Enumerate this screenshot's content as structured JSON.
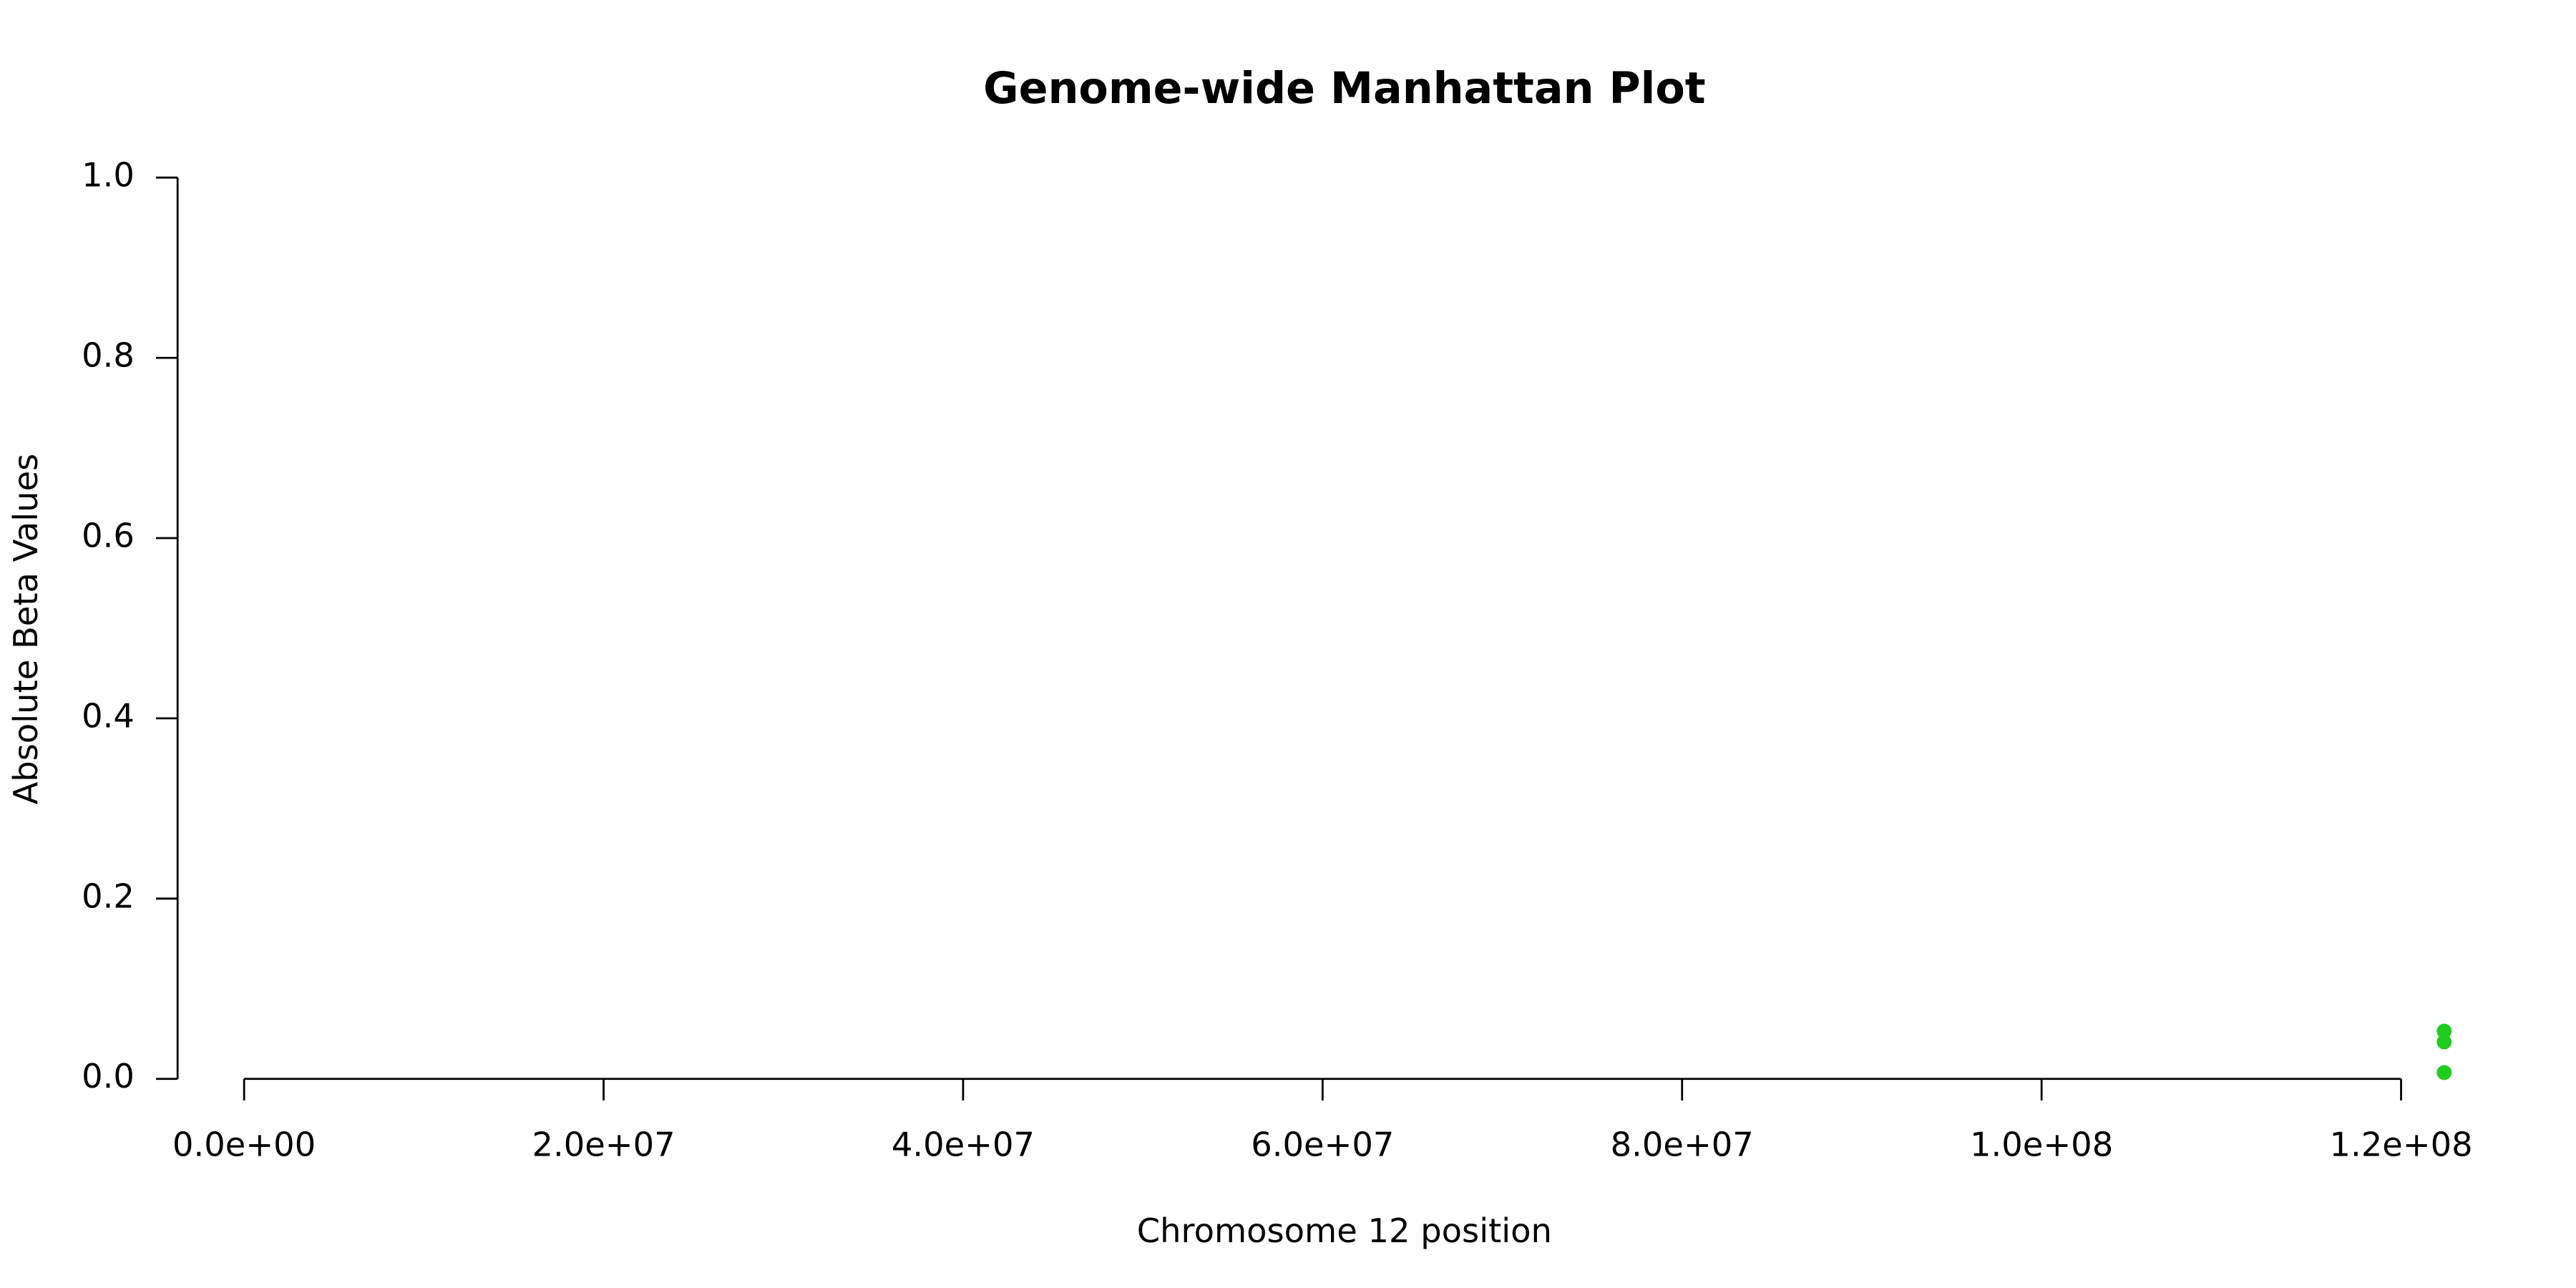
{
  "chart_data": {
    "type": "scatter",
    "title": "Genome-wide Manhattan Plot",
    "x_label": "Chromosome 12 position",
    "y_label": "Absolute Beta Values",
    "x": [
      122400000,
      122400000,
      122400000
    ],
    "values": [
      0.053,
      0.041,
      0.007
    ],
    "color": "#1fcc1f",
    "xlim": [
      -3700000,
      126500000
    ],
    "xticks": [
      {
        "value": 0,
        "label": "0.0e+00"
      },
      {
        "value": 20000000,
        "label": "2.0e+07"
      },
      {
        "value": 40000000,
        "label": "4.0e+07"
      },
      {
        "value": 60000000,
        "label": "6.0e+07"
      },
      {
        "value": 80000000,
        "label": "8.0e+07"
      },
      {
        "value": 100000000,
        "label": "1.0e+08"
      },
      {
        "value": 120000000,
        "label": "1.2e+08"
      }
    ],
    "ylim": [
      0,
      1
    ],
    "yticks": [
      {
        "value": 0,
        "label": "0.0"
      },
      0.2,
      0.4,
      0.6,
      0.8,
      {
        "value": 1,
        "label": "1.0"
      }
    ],
    "grid": false
  }
}
